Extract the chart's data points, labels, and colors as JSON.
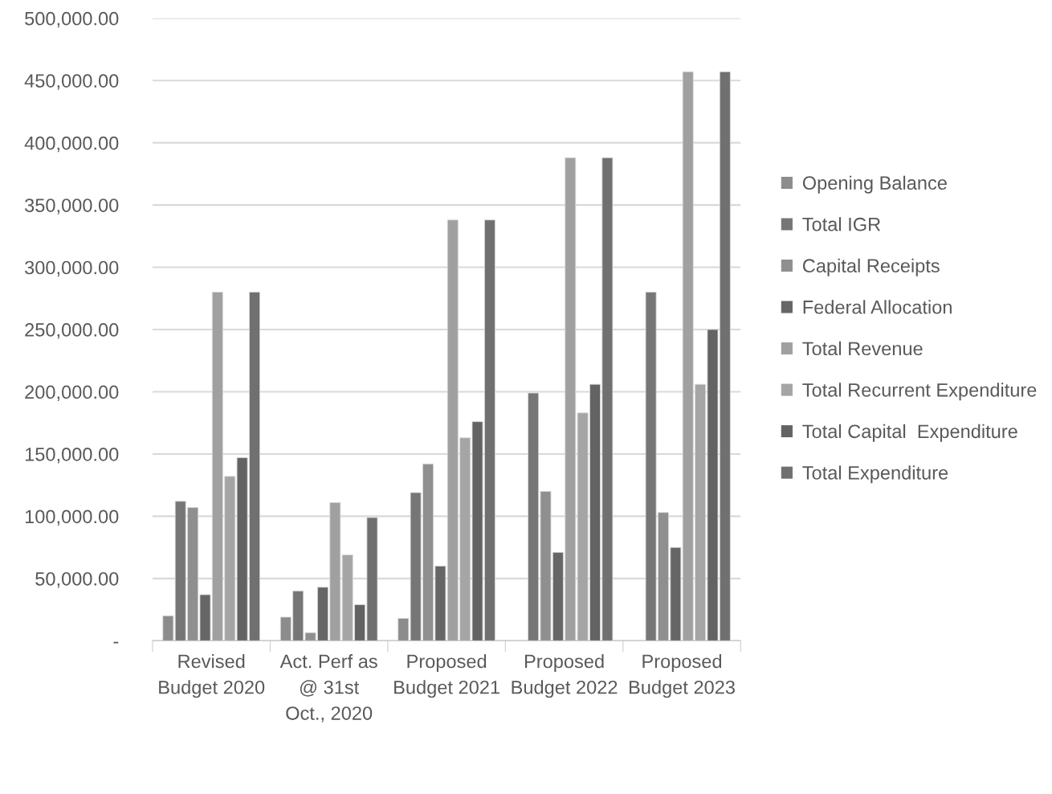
{
  "chart_data": {
    "type": "bar",
    "categories": [
      "Revised\nBudget 2020",
      "Act. Perf as\n@ 31st\nOct., 2020",
      "Proposed\nBudget 2021",
      "Proposed\nBudget 2022",
      "Proposed\nBudget 2023"
    ],
    "series": [
      {
        "name": "Opening Balance",
        "color": "#8c8c8c",
        "values": [
          20000,
          19000,
          18000,
          null,
          null
        ]
      },
      {
        "name": "Total IGR",
        "color": "#767676",
        "values": [
          112000,
          40000,
          119000,
          199000,
          280000
        ]
      },
      {
        "name": "Capital Receipts",
        "color": "#8f8f8f",
        "values": [
          107000,
          6500,
          142000,
          120000,
          103000
        ]
      },
      {
        "name": "Federal Allocation",
        "color": "#666666",
        "values": [
          37000,
          43000,
          60000,
          71000,
          75000
        ]
      },
      {
        "name": "Total Revenue",
        "color": "#a0a0a0",
        "values": [
          280000,
          111000,
          338000,
          388000,
          457000
        ]
      },
      {
        "name": "Total Recurrent Expenditure",
        "color": "#a5a5a5",
        "values": [
          132000,
          69000,
          163000,
          183000,
          206000
        ]
      },
      {
        "name": "Total Capital  Expenditure",
        "color": "#636363",
        "values": [
          147000,
          29000,
          176000,
          206000,
          250000
        ]
      },
      {
        "name": "Total Expenditure",
        "color": "#707070",
        "values": [
          280000,
          99000,
          338000,
          388000,
          457000
        ]
      }
    ],
    "ylim": [
      0,
      500000
    ],
    "yticks": [
      {
        "value": 0,
        "label": "-"
      },
      {
        "value": 50000,
        "label": "50,000.00"
      },
      {
        "value": 100000,
        "label": "100,000.00"
      },
      {
        "value": 150000,
        "label": "150,000.00"
      },
      {
        "value": 200000,
        "label": "200,000.00"
      },
      {
        "value": 250000,
        "label": "250,000.00"
      },
      {
        "value": 300000,
        "label": "300,000.00"
      },
      {
        "value": 350000,
        "label": "350,000.00"
      },
      {
        "value": 400000,
        "label": "400,000.00"
      },
      {
        "value": 450000,
        "label": "450,000.00"
      },
      {
        "value": 500000,
        "label": "500,000.00"
      }
    ],
    "grid": "y",
    "legend": "right"
  }
}
